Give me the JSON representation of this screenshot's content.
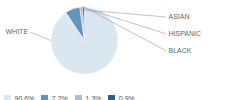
{
  "chart_data": {
    "type": "pie",
    "categories": [
      "WHITE",
      "ASIAN",
      "HISPANIC",
      "BLACK"
    ],
    "values": [
      90.6,
      7.2,
      1.3,
      0.9
    ],
    "value_labels": [
      "90.6%",
      "7.2%",
      "1.3%",
      "0.9%"
    ],
    "colors": [
      "#dce6f1",
      "#6096bc",
      "#aabfd4",
      "#2e5f8a"
    ],
    "legend": "lower left"
  }
}
